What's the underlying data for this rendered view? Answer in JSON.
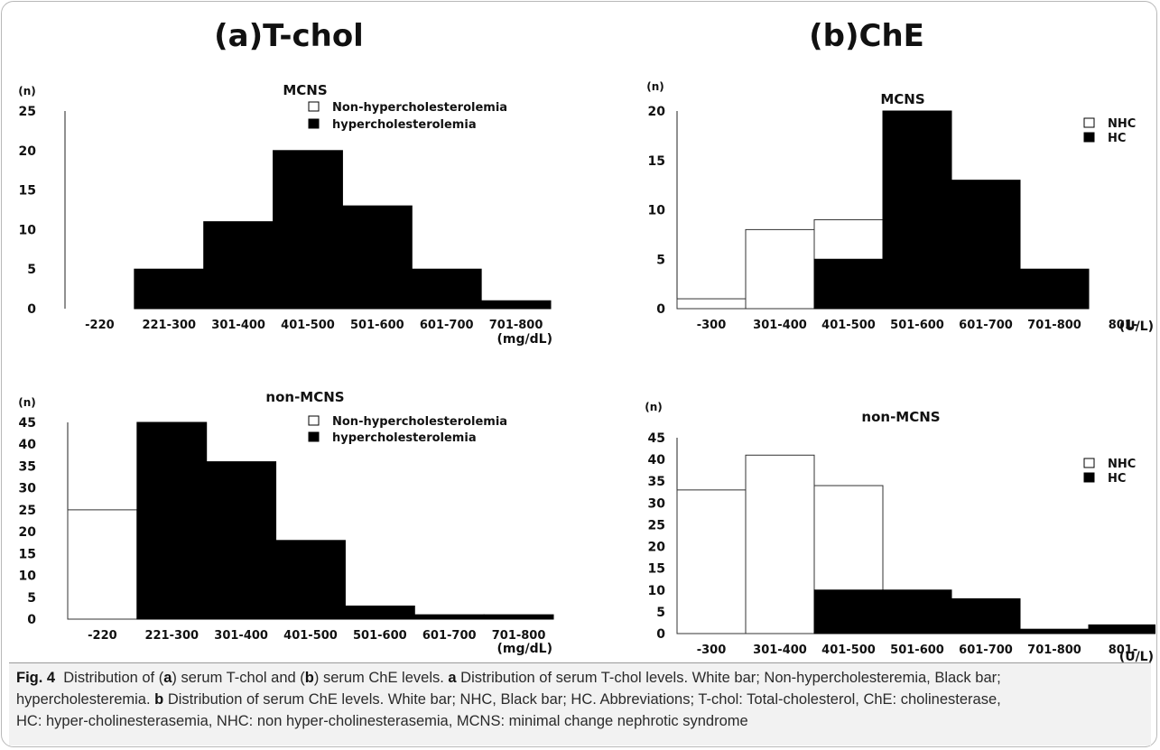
{
  "panel_titles": {
    "a": "(a)T-chol",
    "b": "(b)ChE"
  },
  "caption": {
    "fig_label": "Fig. 4",
    "line1": [
      {
        "t": "Distribution of (",
        "b": false
      },
      {
        "t": "a",
        "b": true
      },
      {
        "t": ") serum T-chol and (",
        "b": false
      },
      {
        "t": "b",
        "b": true
      },
      {
        "t": ") serum ChE levels. ",
        "b": false
      },
      {
        "t": "a",
        "b": true
      },
      {
        "t": " Distribution of serum T-chol levels. White bar; Non-hypercholesteremia, Black bar;",
        "b": false
      }
    ],
    "line2": [
      {
        "t": "hypercholesteremia. ",
        "b": false
      },
      {
        "t": "b",
        "b": true
      },
      {
        "t": " Distribution of serum ChE levels. White bar; NHC, Black bar; HC. Abbreviations; T-chol: Total-cholesterol, ChE: cholinesterase,",
        "b": false
      }
    ],
    "line3": [
      {
        "t": "HC: hyper-cholinesterasemia, NHC: non hyper-cholinesterasemia, MCNS: minimal change nephrotic syndrome",
        "b": false
      }
    ]
  },
  "chart_data": [
    {
      "id": "tchol-mcns",
      "type": "bar",
      "title": "MCNS",
      "ylabel": "(n)",
      "xlabel": "(mg/dL)",
      "categories": [
        "-220",
        "221-300",
        "301-400",
        "401-500",
        "501-600",
        "601-700",
        "701-800"
      ],
      "ylim": [
        0,
        25
      ],
      "yticks": [
        0,
        5,
        10,
        15,
        20,
        25
      ],
      "series": [
        {
          "name": "Non-hypercholesterolemia",
          "color": "#ffffff",
          "values": [
            0,
            0,
            0,
            0,
            0,
            0,
            0
          ]
        },
        {
          "name": "hypercholesterolemia",
          "color": "#000000",
          "values": [
            0,
            5,
            11,
            20,
            13,
            5,
            1
          ]
        }
      ],
      "legend_position": "top-right"
    },
    {
      "id": "tchol-non-mcns",
      "type": "bar",
      "title": "non-MCNS",
      "ylabel": "(n)",
      "xlabel": "(mg/dL)",
      "categories": [
        "-220",
        "221-300",
        "301-400",
        "401-500",
        "501-600",
        "601-700",
        "701-800"
      ],
      "ylim": [
        0,
        45
      ],
      "yticks": [
        0,
        5,
        10,
        15,
        20,
        25,
        30,
        35,
        40,
        45
      ],
      "series": [
        {
          "name": "Non-hypercholesterolemia",
          "color": "#ffffff",
          "values": [
            25,
            0,
            0,
            0,
            0,
            0,
            0
          ]
        },
        {
          "name": "hypercholesterolemia",
          "color": "#000000",
          "values": [
            0,
            45,
            36,
            18,
            3,
            1,
            1
          ]
        }
      ],
      "legend_position": "top-right"
    },
    {
      "id": "che-mcns",
      "type": "bar",
      "title": "MCNS",
      "ylabel": "(n)",
      "xlabel": "(U/L)",
      "categories": [
        "-300",
        "301-400",
        "401-500",
        "501-600",
        "601-700",
        "701-800",
        "801-"
      ],
      "ylim": [
        0,
        20
      ],
      "yticks": [
        0,
        5,
        10,
        15,
        20
      ],
      "series": [
        {
          "name": "NHC",
          "color": "#ffffff",
          "values": [
            1,
            8,
            9,
            0,
            0,
            0,
            0
          ]
        },
        {
          "name": "HC",
          "color": "#000000",
          "values": [
            0,
            0,
            5,
            20,
            13,
            4,
            0
          ]
        }
      ],
      "legend_position": "top-right"
    },
    {
      "id": "che-non-mcns",
      "type": "bar",
      "title": "non-MCNS",
      "ylabel": "(n)",
      "xlabel": "(U/L)",
      "categories": [
        "-300",
        "301-400",
        "401-500",
        "501-600",
        "601-700",
        "701-800",
        "801-"
      ],
      "ylim": [
        0,
        45
      ],
      "yticks": [
        0,
        5,
        10,
        15,
        20,
        25,
        30,
        35,
        40,
        45
      ],
      "series": [
        {
          "name": "NHC",
          "color": "#ffffff",
          "values": [
            33,
            41,
            34,
            0,
            0,
            0,
            0
          ]
        },
        {
          "name": "HC",
          "color": "#000000",
          "values": [
            0,
            0,
            10,
            10,
            8,
            1,
            2
          ]
        }
      ],
      "legend_position": "top-right"
    }
  ]
}
